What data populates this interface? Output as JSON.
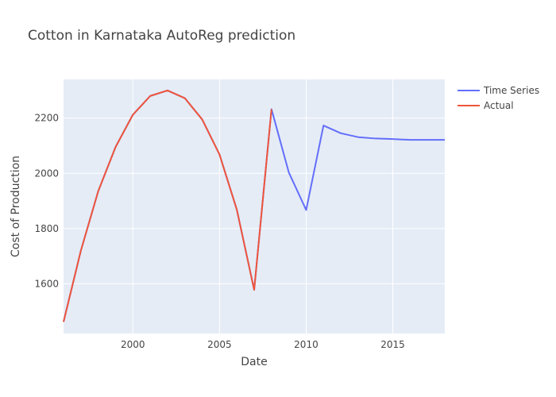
{
  "chart_data": {
    "type": "line",
    "title": "Cotton in Karnataka AutoReg prediction",
    "xlabel": "Date",
    "ylabel": "Cost of Production",
    "xlim": [
      1996,
      2018
    ],
    "ylim": [
      1420,
      2340
    ],
    "x_ticks": [
      "2000",
      "2005",
      "2010",
      "2015"
    ],
    "y_ticks": [
      "1600",
      "1800",
      "2000",
      "2200"
    ],
    "grid": true,
    "legend_position": "top-right",
    "series": [
      {
        "name": "Time Series",
        "color": "#636efa",
        "x": [
          1996,
          1997,
          1998,
          1999,
          2000,
          2001,
          2002,
          2003,
          2004,
          2005,
          2006,
          2007,
          2008,
          2009,
          2010,
          2011,
          2012,
          2013,
          2014,
          2015,
          2016,
          2017,
          2018
        ],
        "y": [
          1462,
          1720,
          1935,
          2095,
          2212,
          2280,
          2300,
          2272,
          2195,
          2068,
          1868,
          1578,
          2232,
          2003,
          1867,
          2173,
          2145,
          2131,
          2126,
          2124,
          2121,
          2121,
          2121
        ]
      },
      {
        "name": "Actual",
        "color": "#ef553b",
        "x": [
          1996,
          1997,
          1998,
          1999,
          2000,
          2001,
          2002,
          2003,
          2004,
          2005,
          2006,
          2007,
          2008
        ],
        "y": [
          1462,
          1720,
          1935,
          2095,
          2212,
          2280,
          2300,
          2272,
          2195,
          2068,
          1868,
          1578,
          2232
        ]
      }
    ]
  }
}
